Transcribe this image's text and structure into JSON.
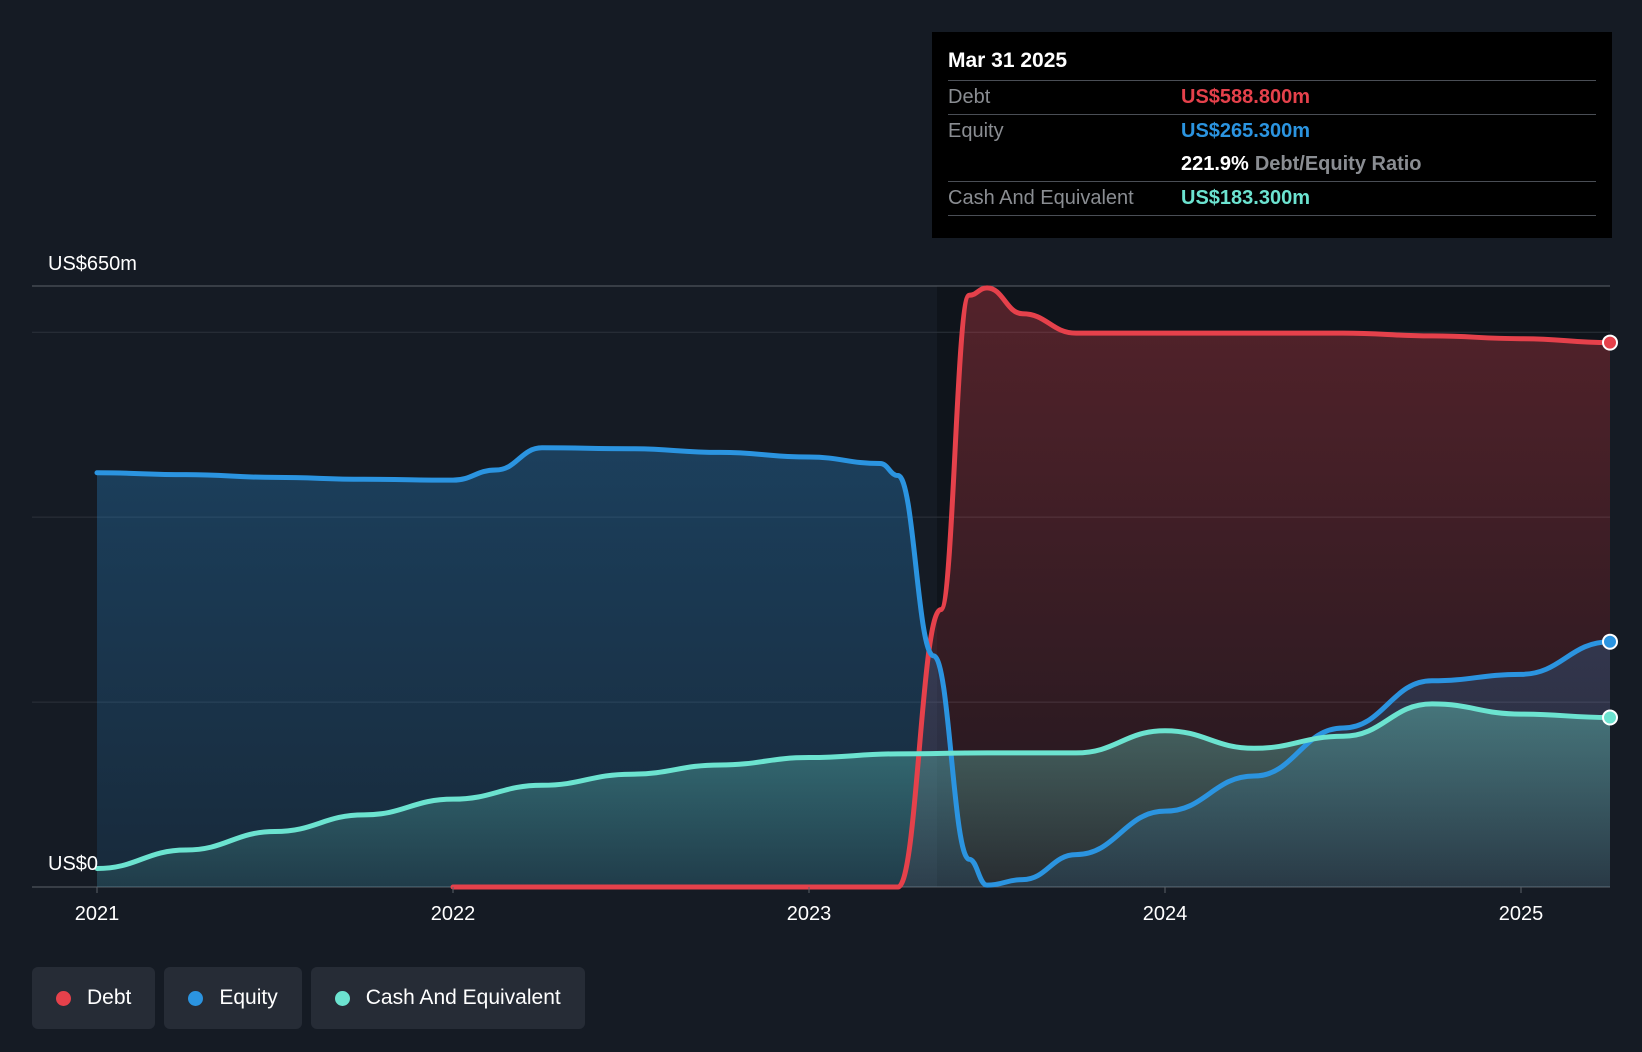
{
  "colors": {
    "debt": "#e5414b",
    "equity": "#2b94e0",
    "cash": "#6ce3d0",
    "background": "#151b24"
  },
  "tooltip": {
    "date": "Mar 31 2025",
    "debt_label": "Debt",
    "debt_value": "US$588.800m",
    "equity_label": "Equity",
    "equity_value": "US$265.300m",
    "ratio_value": "221.9%",
    "ratio_label": "Debt/Equity Ratio",
    "cash_label": "Cash And Equivalent",
    "cash_value": "US$183.300m"
  },
  "legend": [
    {
      "label": "Debt",
      "color": "#e5414b"
    },
    {
      "label": "Equity",
      "color": "#2b94e0"
    },
    {
      "label": "Cash And Equivalent",
      "color": "#6ce3d0"
    }
  ],
  "chart_data": {
    "type": "area",
    "y_top_label": "US$650m",
    "y_bottom_label": "US$0",
    "ylim": [
      0,
      650
    ],
    "xlim": [
      2021.0,
      2025.25
    ],
    "x_ticks": [
      {
        "value": 2021,
        "label": "2021"
      },
      {
        "value": 2022,
        "label": "2022"
      },
      {
        "value": 2023,
        "label": "2023"
      },
      {
        "value": 2024,
        "label": "2024"
      },
      {
        "value": 2025,
        "label": "2025"
      }
    ],
    "grid": true,
    "series": [
      {
        "name": "Debt",
        "color": "#e5414b",
        "points": [
          [
            2022.0,
            0
          ],
          [
            2023.0,
            0
          ],
          [
            2023.25,
            0
          ],
          [
            2023.37,
            300
          ],
          [
            2023.45,
            640
          ],
          [
            2023.5,
            648
          ],
          [
            2023.6,
            620
          ],
          [
            2023.75,
            599
          ],
          [
            2024.0,
            599
          ],
          [
            2024.25,
            599
          ],
          [
            2024.5,
            599
          ],
          [
            2024.75,
            596
          ],
          [
            2025.0,
            593
          ],
          [
            2025.25,
            588.8
          ]
        ]
      },
      {
        "name": "Equity",
        "color": "#2b94e0",
        "points": [
          [
            2021.0,
            448
          ],
          [
            2021.25,
            446
          ],
          [
            2021.5,
            443
          ],
          [
            2021.75,
            441
          ],
          [
            2022.0,
            440
          ],
          [
            2022.12,
            451
          ],
          [
            2022.25,
            475
          ],
          [
            2022.5,
            474
          ],
          [
            2022.75,
            470
          ],
          [
            2023.0,
            465
          ],
          [
            2023.2,
            458
          ],
          [
            2023.25,
            445
          ],
          [
            2023.35,
            250
          ],
          [
            2023.45,
            30
          ],
          [
            2023.5,
            2
          ],
          [
            2023.6,
            8
          ],
          [
            2023.75,
            35
          ],
          [
            2024.0,
            82
          ],
          [
            2024.25,
            120
          ],
          [
            2024.5,
            172
          ],
          [
            2024.75,
            223
          ],
          [
            2025.0,
            230
          ],
          [
            2025.25,
            265.3
          ]
        ]
      },
      {
        "name": "Cash And Equivalent",
        "color": "#6ce3d0",
        "points": [
          [
            2021.0,
            20
          ],
          [
            2021.25,
            40
          ],
          [
            2021.5,
            60
          ],
          [
            2021.75,
            78
          ],
          [
            2022.0,
            95
          ],
          [
            2022.25,
            110
          ],
          [
            2022.5,
            122
          ],
          [
            2022.75,
            132
          ],
          [
            2023.0,
            140
          ],
          [
            2023.25,
            144
          ],
          [
            2023.5,
            145
          ],
          [
            2023.75,
            145
          ],
          [
            2024.0,
            169
          ],
          [
            2024.25,
            150
          ],
          [
            2024.5,
            163
          ],
          [
            2024.75,
            198
          ],
          [
            2025.0,
            187
          ],
          [
            2025.25,
            183.3
          ]
        ]
      }
    ]
  }
}
